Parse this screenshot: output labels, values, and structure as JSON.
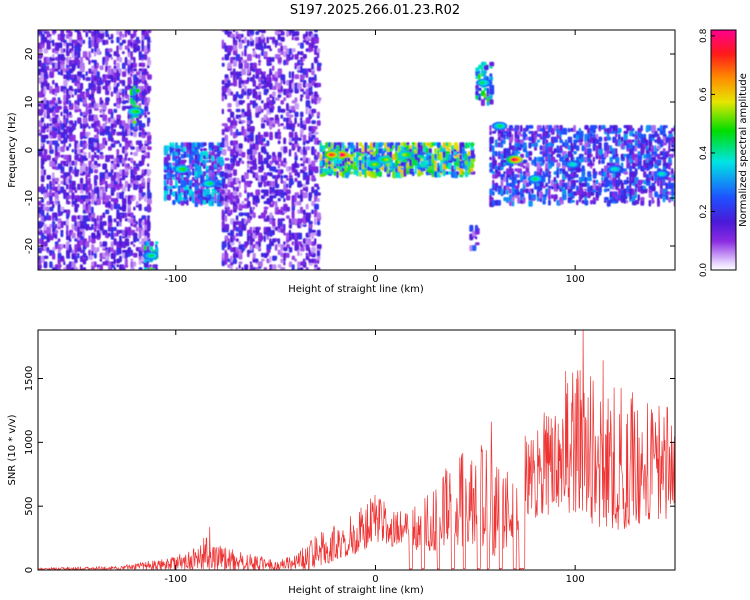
{
  "title": "S197.2025.266.01.23.R02",
  "chart_data": [
    {
      "type": "heatmap",
      "xlabel": "Height of straight line (km)",
      "ylabel": "Frequency (Hz)",
      "xlim": [
        -169,
        150
      ],
      "ylim": [
        -25,
        25
      ],
      "xticks": [
        -100,
        0,
        100
      ],
      "yticks": [
        -20,
        -10,
        0,
        10,
        20
      ],
      "grid": false,
      "colorbar": {
        "label": "Normalized spectral amplitude",
        "range": [
          0.0,
          0.82
        ],
        "ticks": [
          0.0,
          0.2,
          0.4,
          0.6,
          0.8
        ],
        "colormap": "rainbow (white-violet-blue-cyan-green-yellow-orange-red-magenta)"
      },
      "segments": [
        {
          "x_start": -169,
          "x_end": -113,
          "density": 0.45,
          "center_hz": 0,
          "spread_hz": 25,
          "mean_amp": 0.12
        },
        {
          "x_start": -123,
          "x_end": -119,
          "density": 0.7,
          "center_hz": 9,
          "spread_hz": 4,
          "mean_amp": 0.3
        },
        {
          "x_start": -116,
          "x_end": -109,
          "density": 0.7,
          "center_hz": -22,
          "spread_hz": 3,
          "mean_amp": 0.3
        },
        {
          "x_start": -106,
          "x_end": -77,
          "density": 0.7,
          "center_hz": -5,
          "spread_hz": 6,
          "mean_amp": 0.22
        },
        {
          "x_start": -77,
          "x_end": -28,
          "density": 0.4,
          "center_hz": 0,
          "spread_hz": 25,
          "mean_amp": 0.12
        },
        {
          "x_start": -28,
          "x_end": 48,
          "density": 0.85,
          "center_hz": -2,
          "spread_hz": 3,
          "mean_amp": 0.35
        },
        {
          "x_start": 47,
          "x_end": 50,
          "density": 0.6,
          "center_hz": -18,
          "spread_hz": 3,
          "mean_amp": 0.15
        },
        {
          "x_start": 50,
          "x_end": 58,
          "density": 0.6,
          "center_hz": 14,
          "spread_hz": 4,
          "mean_amp": 0.3
        },
        {
          "x_start": 57,
          "x_end": 150,
          "density": 0.55,
          "center_hz": -3,
          "spread_hz": 8,
          "mean_amp": 0.18
        }
      ],
      "hotspots": [
        {
          "x": -17,
          "y": -1,
          "amp": 0.82
        },
        {
          "x": -22,
          "y": -1,
          "amp": 0.75
        },
        {
          "x": 70,
          "y": -2,
          "amp": 0.8
        },
        {
          "x": 54,
          "y": 14,
          "amp": 0.45
        },
        {
          "x": -97,
          "y": -4,
          "amp": 0.5
        },
        {
          "x": -112,
          "y": -22,
          "amp": 0.45
        },
        {
          "x": -120,
          "y": 8,
          "amp": 0.5
        },
        {
          "x": -83,
          "y": -7,
          "amp": 0.45
        },
        {
          "x": 0,
          "y": -3,
          "amp": 0.55
        },
        {
          "x": 15,
          "y": -1,
          "amp": 0.55
        },
        {
          "x": 5,
          "y": -2,
          "amp": 0.55
        },
        {
          "x": 62,
          "y": 5,
          "amp": 0.45
        },
        {
          "x": 80,
          "y": -6,
          "amp": 0.45
        },
        {
          "x": 99,
          "y": -3,
          "amp": 0.4
        },
        {
          "x": 120,
          "y": -4,
          "amp": 0.4
        },
        {
          "x": 143,
          "y": -5,
          "amp": 0.4
        }
      ]
    },
    {
      "type": "line",
      "xlabel": "Height of straight line (km)",
      "ylabel": "SNR (10 * v/v)",
      "xlim": [
        -169,
        150
      ],
      "ylim": [
        0,
        1880
      ],
      "xticks": [
        -100,
        0,
        100
      ],
      "yticks": [
        0,
        500,
        1000,
        1500
      ],
      "grid": false,
      "series": [
        {
          "name": "SNR",
          "color": "#ee3333",
          "x_step": 0.25,
          "envelope": {
            "x": [
              -169,
              -130,
              -110,
              -100,
              -90,
              -83,
              -80,
              -70,
              -60,
              -50,
              -40,
              -35,
              -30,
              -20,
              -10,
              0,
              10,
              20,
              30,
              40,
              50,
              60,
              70,
              75,
              80,
              90,
              100,
              110,
              120,
              130,
              140,
              150
            ],
            "low": [
              0,
              0,
              0,
              0,
              0,
              0,
              0,
              0,
              0,
              0,
              0,
              0,
              0,
              80,
              120,
              200,
              180,
              150,
              150,
              180,
              200,
              100,
              250,
              250,
              400,
              450,
              450,
              350,
              300,
              350,
              400,
              400
            ],
            "high": [
              20,
              30,
              80,
              120,
              180,
              330,
              250,
              150,
              120,
              80,
              120,
              220,
              280,
              350,
              450,
              600,
              450,
              500,
              700,
              900,
              1100,
              900,
              700,
              1000,
              1200,
              1400,
              1700,
              1500,
              1500,
              1400,
              1300,
              1300
            ]
          },
          "dropouts": [
            {
              "x_start": 17,
              "x_end": 18.5
            },
            {
              "x_start": 23,
              "x_end": 24.5
            },
            {
              "x_start": 31,
              "x_end": 32
            },
            {
              "x_start": 38,
              "x_end": 39.5
            },
            {
              "x_start": 44,
              "x_end": 45
            },
            {
              "x_start": 51,
              "x_end": 52.5
            },
            {
              "x_start": 56,
              "x_end": 57
            },
            {
              "x_start": 62,
              "x_end": 63.5
            },
            {
              "x_start": 69,
              "x_end": 70.5
            },
            {
              "x_start": 72,
              "x_end": 75
            }
          ],
          "peaks": [
            {
              "x": -83,
              "y": 335
            },
            {
              "x": 34,
              "y": 730
            },
            {
              "x": 58,
              "y": 1160
            },
            {
              "x": 75,
              "y": 1050
            },
            {
              "x": 104,
              "y": 1880
            },
            {
              "x": 114,
              "y": 1640
            }
          ]
        }
      ]
    }
  ]
}
